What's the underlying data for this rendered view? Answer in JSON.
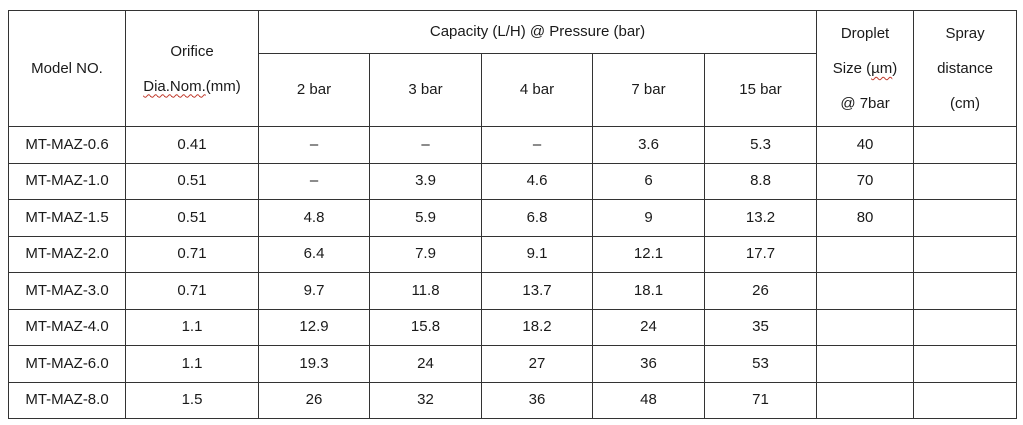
{
  "table": {
    "headers": {
      "model": "Model NO.",
      "orifice_line1": "Orifice",
      "orifice_line2": "Dia.Nom.",
      "orifice_line2_unit": "(mm)",
      "capacity_group": "Capacity (L/H) @ Pressure (bar)",
      "pressures": [
        "2 bar",
        "3 bar",
        "4 bar",
        "7 bar",
        "15 bar"
      ],
      "droplet_line1": "Droplet",
      "droplet_line2_pre": "Size (",
      "droplet_line2_unit": "µm",
      "droplet_line2_post": ")",
      "droplet_line3": "@ 7bar",
      "spray_line1": "Spray",
      "spray_line2": "distance",
      "spray_line3": "(cm)"
    },
    "rows": [
      {
        "model": "MT-MAZ-0.6",
        "orifice": "0.41",
        "caps": [
          "–",
          "–",
          "–",
          "3.6",
          "5.3"
        ],
        "droplet": "40",
        "spray": ""
      },
      {
        "model": "MT-MAZ-1.0",
        "orifice": "0.51",
        "caps": [
          "–",
          "3.9",
          "4.6",
          "6",
          "8.8"
        ],
        "droplet": "70",
        "spray": ""
      },
      {
        "model": "MT-MAZ-1.5",
        "orifice": "0.51",
        "caps": [
          "4.8",
          "5.9",
          "6.8",
          "9",
          "13.2"
        ],
        "droplet": "80",
        "spray": ""
      },
      {
        "model": "MT-MAZ-2.0",
        "orifice": "0.71",
        "caps": [
          "6.4",
          "7.9",
          "9.1",
          "12.1",
          "17.7"
        ],
        "droplet": "",
        "spray": ""
      },
      {
        "model": "MT-MAZ-3.0",
        "orifice": "0.71",
        "caps": [
          "9.7",
          "11.8",
          "13.7",
          "18.1",
          "26"
        ],
        "droplet": "",
        "spray": ""
      },
      {
        "model": "MT-MAZ-4.0",
        "orifice": "1.1",
        "caps": [
          "12.9",
          "15.8",
          "18.2",
          "24",
          "35"
        ],
        "droplet": "",
        "spray": ""
      },
      {
        "model": "MT-MAZ-6.0",
        "orifice": "1.1",
        "caps": [
          "19.3",
          "24",
          "27",
          "36",
          "53"
        ],
        "droplet": "",
        "spray": ""
      },
      {
        "model": "MT-MAZ-8.0",
        "orifice": "1.5",
        "caps": [
          "26",
          "32",
          "36",
          "48",
          "71"
        ],
        "droplet": "",
        "spray": ""
      }
    ]
  }
}
